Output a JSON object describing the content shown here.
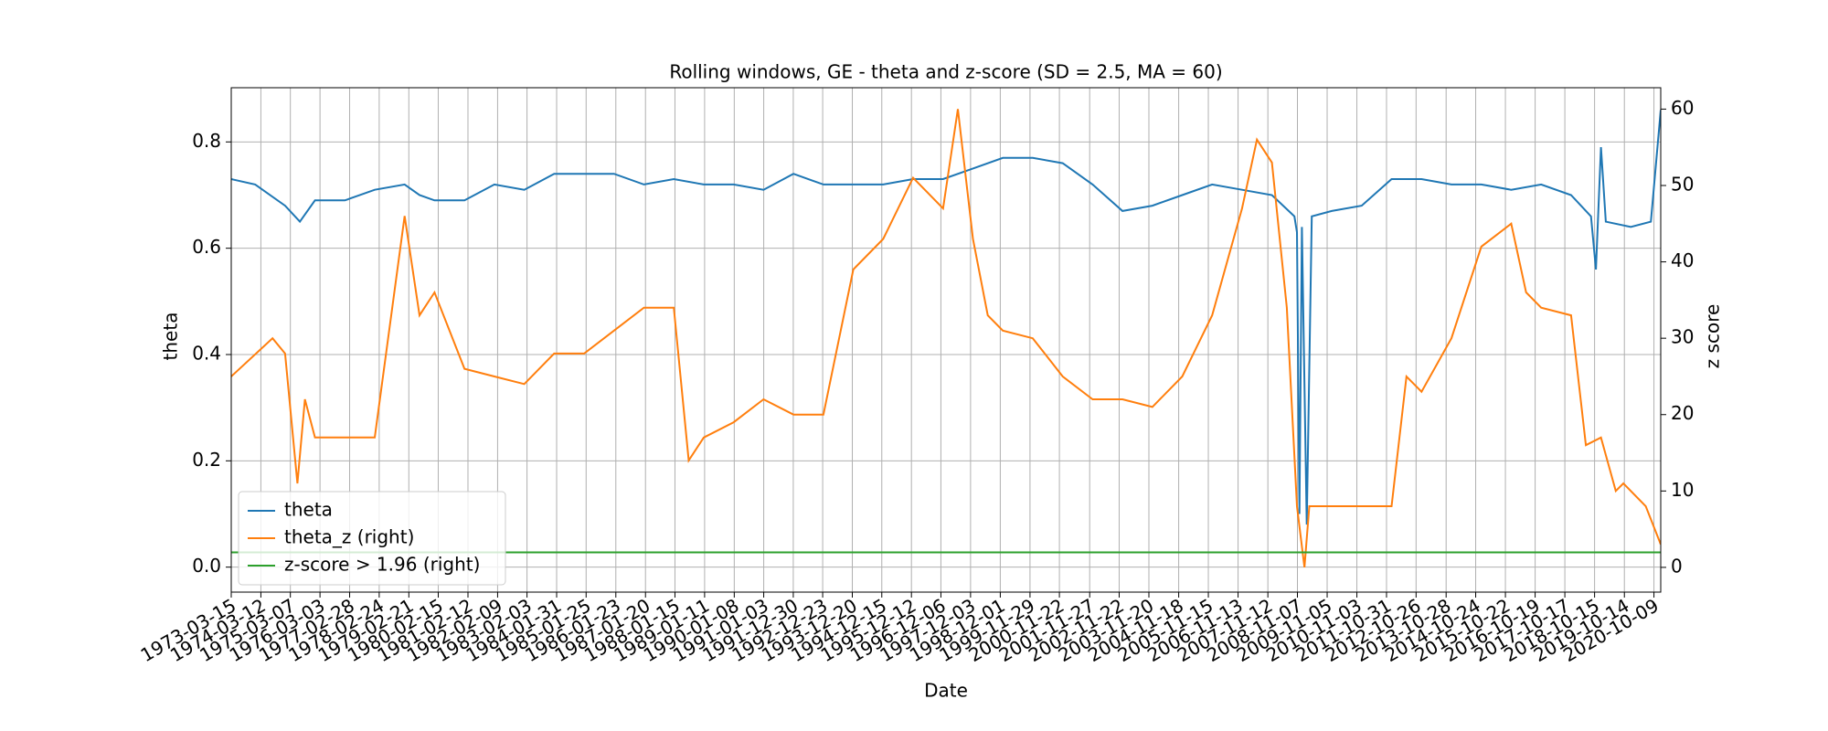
{
  "chart_data": {
    "type": "line",
    "title": "Rolling windows, GE - theta and z-score (SD = 2.5, MA = 60)",
    "x_label": "Date",
    "y_label": "theta",
    "y2_label": "z score",
    "xlim": [
      "1973-03-15",
      "2020-12-31"
    ],
    "xticks": [
      "1973-03-15",
      "1974-03-12",
      "1975-03-07",
      "1976-03-03",
      "1977-02-28",
      "1978-02-24",
      "1979-02-21",
      "1980-02-15",
      "1981-02-12",
      "1982-02-09",
      "1983-02-03",
      "1984-01-31",
      "1985-01-25",
      "1986-01-23",
      "1987-01-20",
      "1988-01-15",
      "1989-01-11",
      "1990-01-08",
      "1991-01-03",
      "1991-12-30",
      "1992-12-23",
      "1993-12-20",
      "1994-12-15",
      "1995-12-12",
      "1996-12-06",
      "1997-12-03",
      "1998-12-01",
      "1999-11-29",
      "2000-11-22",
      "2001-11-27",
      "2002-11-22",
      "2003-11-20",
      "2004-11-18",
      "2005-11-15",
      "2006-11-13",
      "2007-11-12",
      "2008-11-07",
      "2009-11-05",
      "2010-11-03",
      "2011-10-31",
      "2012-10-26",
      "2013-10-28",
      "2014-10-24",
      "2015-10-22",
      "2016-10-19",
      "2017-10-17",
      "2018-10-15",
      "2019-10-14",
      "2020-10-09"
    ],
    "ylim": [
      -0.047,
      0.902
    ],
    "yticks": [
      {
        "value": 0,
        "label": "0.0"
      },
      0.2,
      0.4,
      0.6,
      0.8
    ],
    "y2lim": [
      -3.24,
      62.8
    ],
    "y2ticks": [
      0,
      10,
      20,
      30,
      40,
      50,
      60
    ],
    "grid": true,
    "legend": "lower left",
    "series": [
      {
        "name": "theta",
        "color": "#1f77b4",
        "x": [
          "1973-03-15",
          "1974-01-01",
          "1975-01-01",
          "1975-07-01",
          "1976-01-01",
          "1977-01-01",
          "1978-01-01",
          "1979-01-01",
          "1979-07-01",
          "1980-01-01",
          "1981-01-01",
          "1982-01-01",
          "1983-01-01",
          "1984-01-01",
          "1985-01-01",
          "1986-01-01",
          "1987-01-01",
          "1988-01-01",
          "1989-01-01",
          "1990-01-01",
          "1991-01-01",
          "1992-01-01",
          "1993-01-01",
          "1994-01-01",
          "1995-01-01",
          "1996-01-01",
          "1997-01-01",
          "1998-01-01",
          "1999-01-01",
          "2000-01-01",
          "2001-01-01",
          "2002-01-01",
          "2003-01-01",
          "2004-01-01",
          "2005-01-01",
          "2006-01-01",
          "2007-01-01",
          "2008-01-01",
          "2008-10-01",
          "2008-11-01",
          "2008-12-01",
          "2009-01-01",
          "2009-03-01",
          "2009-05-01",
          "2010-01-01",
          "2011-01-01",
          "2012-01-01",
          "2013-01-01",
          "2014-01-01",
          "2015-01-01",
          "2016-01-01",
          "2017-01-01",
          "2018-01-01",
          "2018-09-01",
          "2018-11-01",
          "2019-01-01",
          "2019-03-01",
          "2020-01-01",
          "2020-09-01",
          "2020-12-31"
        ],
        "values": [
          0.73,
          0.72,
          0.68,
          0.65,
          0.69,
          0.69,
          0.71,
          0.72,
          0.7,
          0.69,
          0.69,
          0.72,
          0.71,
          0.74,
          0.74,
          0.74,
          0.72,
          0.73,
          0.72,
          0.72,
          0.71,
          0.74,
          0.72,
          0.72,
          0.72,
          0.73,
          0.73,
          0.75,
          0.77,
          0.77,
          0.76,
          0.72,
          0.67,
          0.68,
          0.7,
          0.72,
          0.71,
          0.7,
          0.66,
          0.63,
          0.1,
          0.64,
          0.08,
          0.66,
          0.67,
          0.68,
          0.73,
          0.73,
          0.72,
          0.72,
          0.71,
          0.72,
          0.7,
          0.66,
          0.56,
          0.79,
          0.65,
          0.64,
          0.65,
          0.86
        ]
      },
      {
        "name": "theta_z (right)",
        "color": "#ff7f0e",
        "axis": "y2",
        "x": [
          "1973-03-15",
          "1974-08-01",
          "1975-01-01",
          "1975-06-01",
          "1975-09-01",
          "1976-01-01",
          "1977-01-01",
          "1978-01-01",
          "1979-01-01",
          "1979-07-01",
          "1980-01-01",
          "1981-01-01",
          "1982-01-01",
          "1983-01-01",
          "1984-01-01",
          "1985-01-01",
          "1986-01-01",
          "1987-01-01",
          "1988-01-01",
          "1988-07-01",
          "1989-01-01",
          "1990-01-01",
          "1991-01-01",
          "1992-01-01",
          "1993-01-01",
          "1994-01-01",
          "1995-01-01",
          "1996-01-01",
          "1997-01-01",
          "1997-07-01",
          "1998-01-01",
          "1998-07-01",
          "1999-01-01",
          "2000-01-01",
          "2001-01-01",
          "2002-01-01",
          "2003-01-01",
          "2004-01-01",
          "2005-01-01",
          "2006-01-01",
          "2007-01-01",
          "2007-07-01",
          "2008-01-01",
          "2008-07-01",
          "2008-11-01",
          "2009-02-01",
          "2009-04-01",
          "2010-01-01",
          "2011-01-01",
          "2012-01-01",
          "2012-07-01",
          "2013-01-01",
          "2014-01-01",
          "2015-01-01",
          "2016-01-01",
          "2016-07-01",
          "2017-01-01",
          "2018-01-01",
          "2018-07-01",
          "2019-01-01",
          "2019-07-01",
          "2019-10-01",
          "2020-07-01",
          "2020-12-31"
        ],
        "values": [
          25,
          30,
          28,
          11,
          22,
          17,
          17,
          17,
          46,
          33,
          36,
          26,
          25,
          24,
          28,
          28,
          31,
          34,
          34,
          14,
          17,
          19,
          22,
          20,
          20,
          39,
          43,
          51,
          47,
          60,
          43,
          33,
          31,
          30,
          25,
          22,
          22,
          21,
          25,
          33,
          47,
          56,
          53,
          34,
          8,
          0,
          8,
          8,
          8,
          8,
          25,
          23,
          30,
          42,
          45,
          36,
          34,
          33,
          16,
          17,
          10,
          11,
          8,
          3
        ]
      },
      {
        "name": "z-score > 1.96 (right)",
        "color": "#2ca02c",
        "axis": "y2",
        "x": [
          "1973-03-15",
          "2020-12-31"
        ],
        "values": [
          1.96,
          1.96
        ]
      }
    ]
  }
}
